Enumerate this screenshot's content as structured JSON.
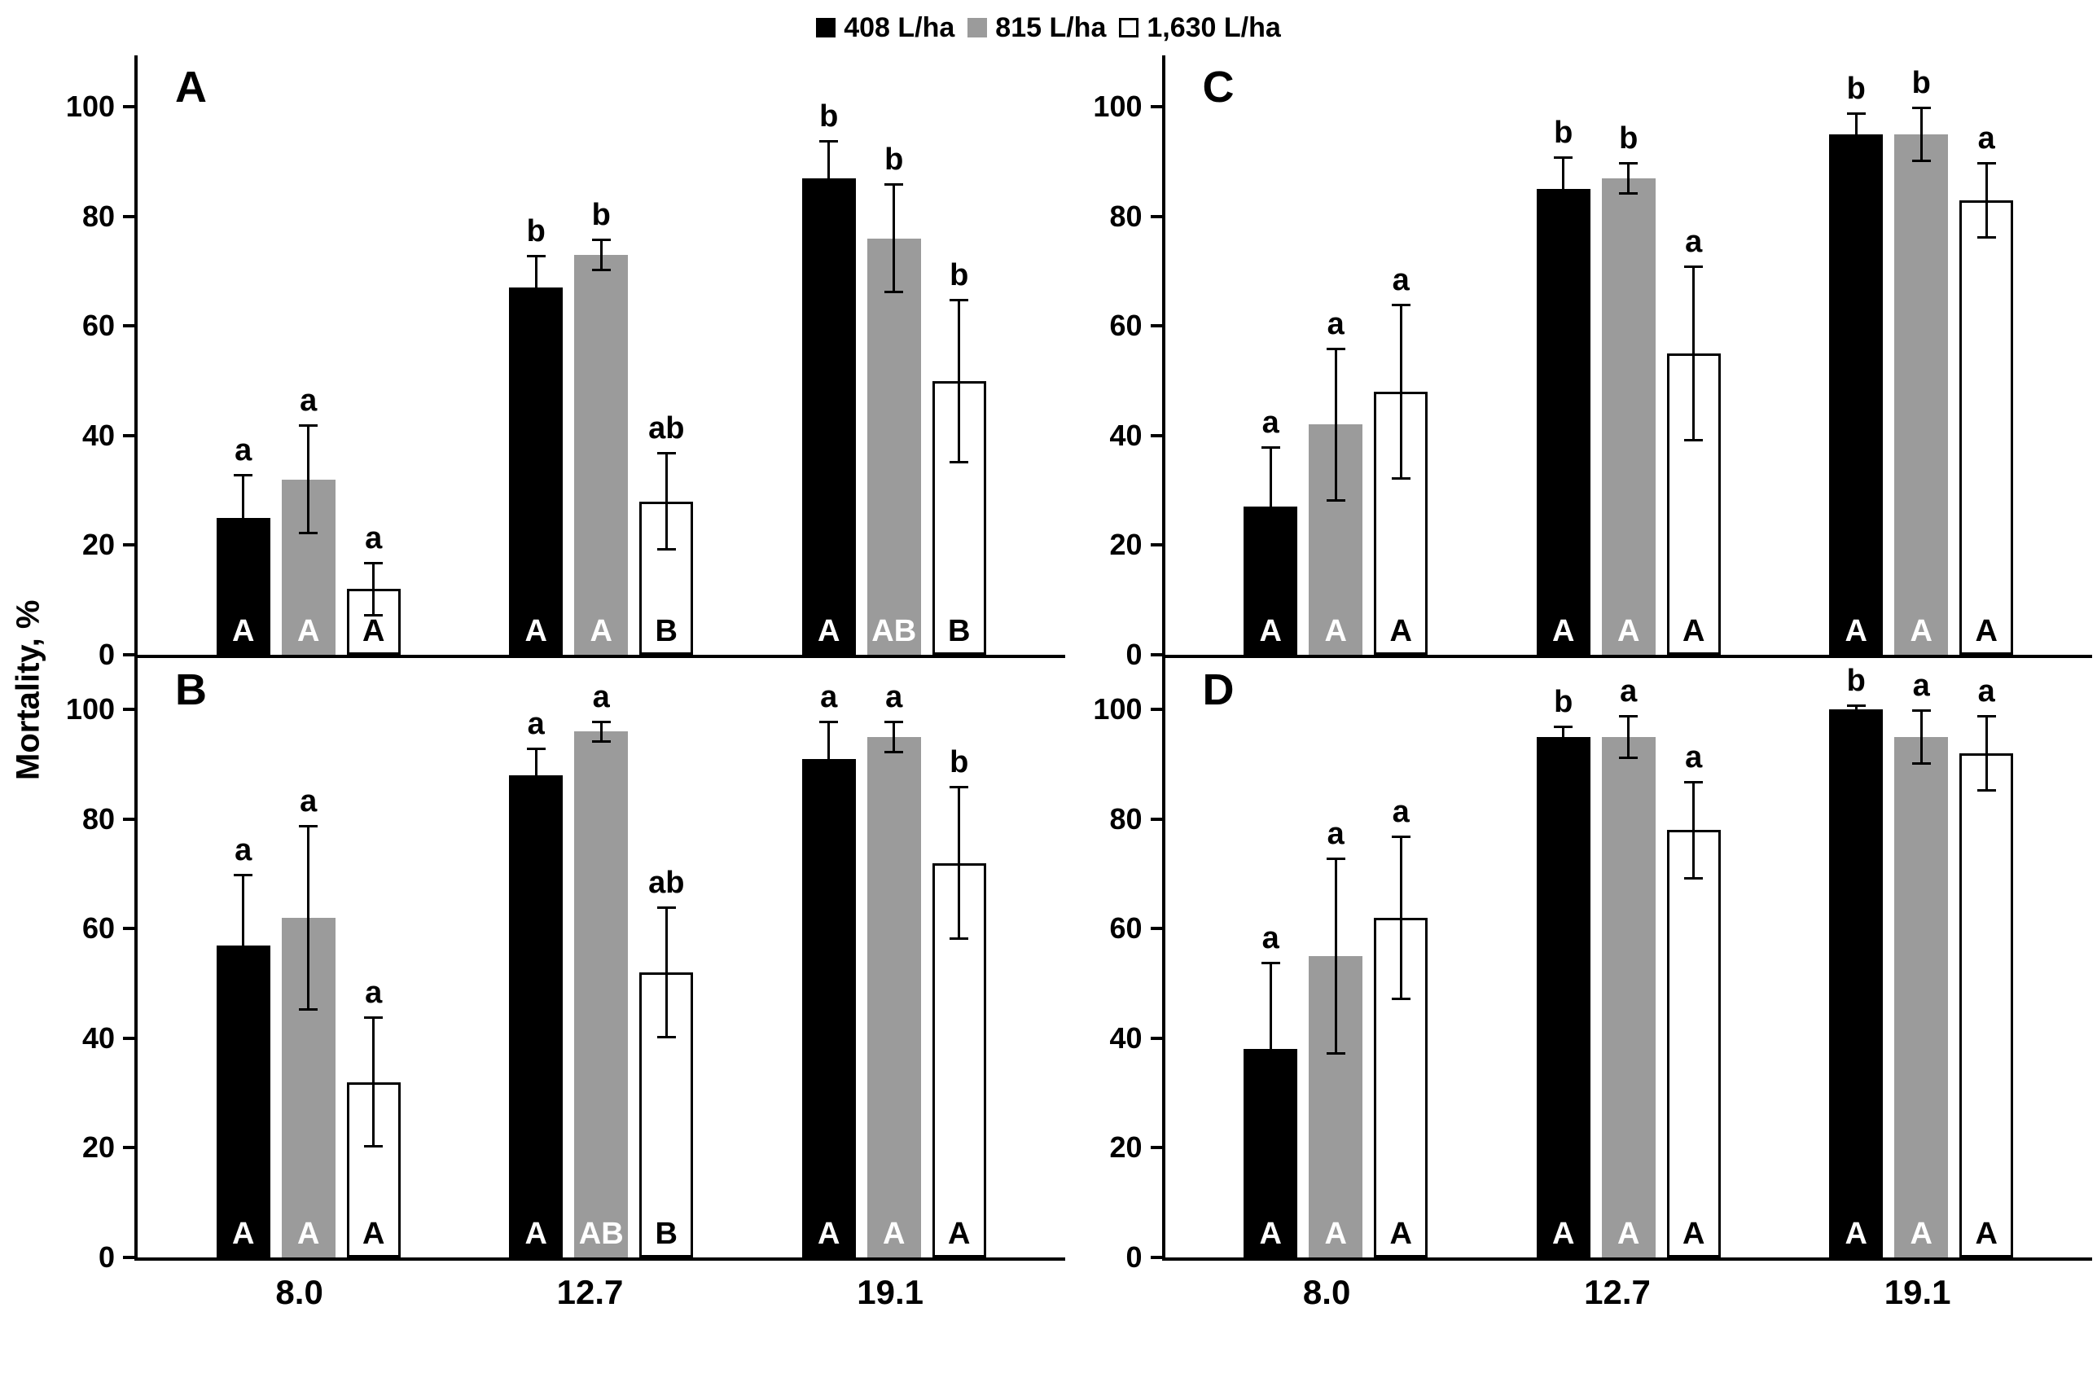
{
  "figure": {
    "ylabel": "Mortality, %"
  },
  "chart_data": {
    "type": "bar",
    "title": "",
    "xlabel": "",
    "ylabel": "Mortality, %",
    "ylim": [
      0,
      110
    ],
    "yticks": [
      0,
      20,
      40,
      60,
      80,
      100
    ],
    "grid": false,
    "error_bars": true,
    "legend_position": "top-center",
    "categories": [
      "8.0",
      "12.7",
      "19.1"
    ],
    "series": [
      {
        "name": "408 L/ha",
        "color": "#000000",
        "inside_letter_color": "#ffffff"
      },
      {
        "name": "815 L/ha",
        "color": "#9b9b9b",
        "inside_letter_color": "#ffffff"
      },
      {
        "name": "1,630 L/ha",
        "color": "#ffffff",
        "inside_letter_color": "#000000"
      }
    ],
    "panels": [
      {
        "label": "A",
        "position": "top-left",
        "show_x_labels": false,
        "groups": [
          {
            "category": "8.0",
            "bars": [
              {
                "series": "408 L/ha",
                "value": 25,
                "error": 8,
                "letter_above": "a",
                "letter_inside": "A"
              },
              {
                "series": "815 L/ha",
                "value": 32,
                "error": 10,
                "letter_above": "a",
                "letter_inside": "A"
              },
              {
                "series": "1,630 L/ha",
                "value": 12,
                "error": 5,
                "letter_above": "a",
                "letter_inside": "A"
              }
            ]
          },
          {
            "category": "12.7",
            "bars": [
              {
                "series": "408 L/ha",
                "value": 67,
                "error": 6,
                "letter_above": "b",
                "letter_inside": "A"
              },
              {
                "series": "815 L/ha",
                "value": 73,
                "error": 3,
                "letter_above": "b",
                "letter_inside": "A"
              },
              {
                "series": "1,630 L/ha",
                "value": 28,
                "error": 9,
                "letter_above": "ab",
                "letter_inside": "B"
              }
            ]
          },
          {
            "category": "19.1",
            "bars": [
              {
                "series": "408 L/ha",
                "value": 87,
                "error": 7,
                "letter_above": "b",
                "letter_inside": "A"
              },
              {
                "series": "815 L/ha",
                "value": 76,
                "error": 10,
                "letter_above": "b",
                "letter_inside": "AB"
              },
              {
                "series": "1,630 L/ha",
                "value": 50,
                "error": 15,
                "letter_above": "b",
                "letter_inside": "B"
              }
            ]
          }
        ]
      },
      {
        "label": "C",
        "position": "top-right",
        "show_x_labels": false,
        "groups": [
          {
            "category": "8.0",
            "bars": [
              {
                "series": "408 L/ha",
                "value": 27,
                "error": 11,
                "letter_above": "a",
                "letter_inside": "A"
              },
              {
                "series": "815 L/ha",
                "value": 42,
                "error": 14,
                "letter_above": "a",
                "letter_inside": "A"
              },
              {
                "series": "1,630 L/ha",
                "value": 48,
                "error": 16,
                "letter_above": "a",
                "letter_inside": "A"
              }
            ]
          },
          {
            "category": "12.7",
            "bars": [
              {
                "series": "408 L/ha",
                "value": 85,
                "error": 6,
                "letter_above": "b",
                "letter_inside": "A"
              },
              {
                "series": "815 L/ha",
                "value": 87,
                "error": 3,
                "letter_above": "b",
                "letter_inside": "A"
              },
              {
                "series": "1,630 L/ha",
                "value": 55,
                "error": 16,
                "letter_above": "a",
                "letter_inside": "A"
              }
            ]
          },
          {
            "category": "19.1",
            "bars": [
              {
                "series": "408 L/ha",
                "value": 95,
                "error": 4,
                "letter_above": "b",
                "letter_inside": "A"
              },
              {
                "series": "815 L/ha",
                "value": 95,
                "error": 5,
                "letter_above": "b",
                "letter_inside": "A"
              },
              {
                "series": "1,630 L/ha",
                "value": 83,
                "error": 7,
                "letter_above": "a",
                "letter_inside": "A"
              }
            ]
          }
        ]
      },
      {
        "label": "B",
        "position": "bottom-left",
        "show_x_labels": true,
        "groups": [
          {
            "category": "8.0",
            "bars": [
              {
                "series": "408 L/ha",
                "value": 57,
                "error": 13,
                "letter_above": "a",
                "letter_inside": "A"
              },
              {
                "series": "815 L/ha",
                "value": 62,
                "error": 17,
                "letter_above": "a",
                "letter_inside": "A"
              },
              {
                "series": "1,630 L/ha",
                "value": 32,
                "error": 12,
                "letter_above": "a",
                "letter_inside": "A"
              }
            ]
          },
          {
            "category": "12.7",
            "bars": [
              {
                "series": "408 L/ha",
                "value": 88,
                "error": 5,
                "letter_above": "a",
                "letter_inside": "A"
              },
              {
                "series": "815 L/ha",
                "value": 96,
                "error": 2,
                "letter_above": "a",
                "letter_inside": "AB"
              },
              {
                "series": "1,630 L/ha",
                "value": 52,
                "error": 12,
                "letter_above": "ab",
                "letter_inside": "B"
              }
            ]
          },
          {
            "category": "19.1",
            "bars": [
              {
                "series": "408 L/ha",
                "value": 91,
                "error": 7,
                "letter_above": "a",
                "letter_inside": "A"
              },
              {
                "series": "815 L/ha",
                "value": 95,
                "error": 3,
                "letter_above": "a",
                "letter_inside": "A"
              },
              {
                "series": "1,630 L/ha",
                "value": 72,
                "error": 14,
                "letter_above": "b",
                "letter_inside": "A"
              }
            ]
          }
        ]
      },
      {
        "label": "D",
        "position": "bottom-right",
        "show_x_labels": true,
        "groups": [
          {
            "category": "8.0",
            "bars": [
              {
                "series": "408 L/ha",
                "value": 38,
                "error": 16,
                "letter_above": "a",
                "letter_inside": "A"
              },
              {
                "series": "815 L/ha",
                "value": 55,
                "error": 18,
                "letter_above": "a",
                "letter_inside": "A"
              },
              {
                "series": "1,630 L/ha",
                "value": 62,
                "error": 15,
                "letter_above": "a",
                "letter_inside": "A"
              }
            ]
          },
          {
            "category": "12.7",
            "bars": [
              {
                "series": "408 L/ha",
                "value": 95,
                "error": 2,
                "letter_above": "b",
                "letter_inside": "A"
              },
              {
                "series": "815 L/ha",
                "value": 95,
                "error": 4,
                "letter_above": "a",
                "letter_inside": "A"
              },
              {
                "series": "1,630 L/ha",
                "value": 78,
                "error": 9,
                "letter_above": "a",
                "letter_inside": "A"
              }
            ]
          },
          {
            "category": "19.1",
            "bars": [
              {
                "series": "408 L/ha",
                "value": 100,
                "error": 1,
                "letter_above": "b",
                "letter_inside": "A"
              },
              {
                "series": "815 L/ha",
                "value": 95,
                "error": 5,
                "letter_above": "a",
                "letter_inside": "A"
              },
              {
                "series": "1,630 L/ha",
                "value": 92,
                "error": 7,
                "letter_above": "a",
                "letter_inside": "A"
              }
            ]
          }
        ]
      }
    ]
  }
}
